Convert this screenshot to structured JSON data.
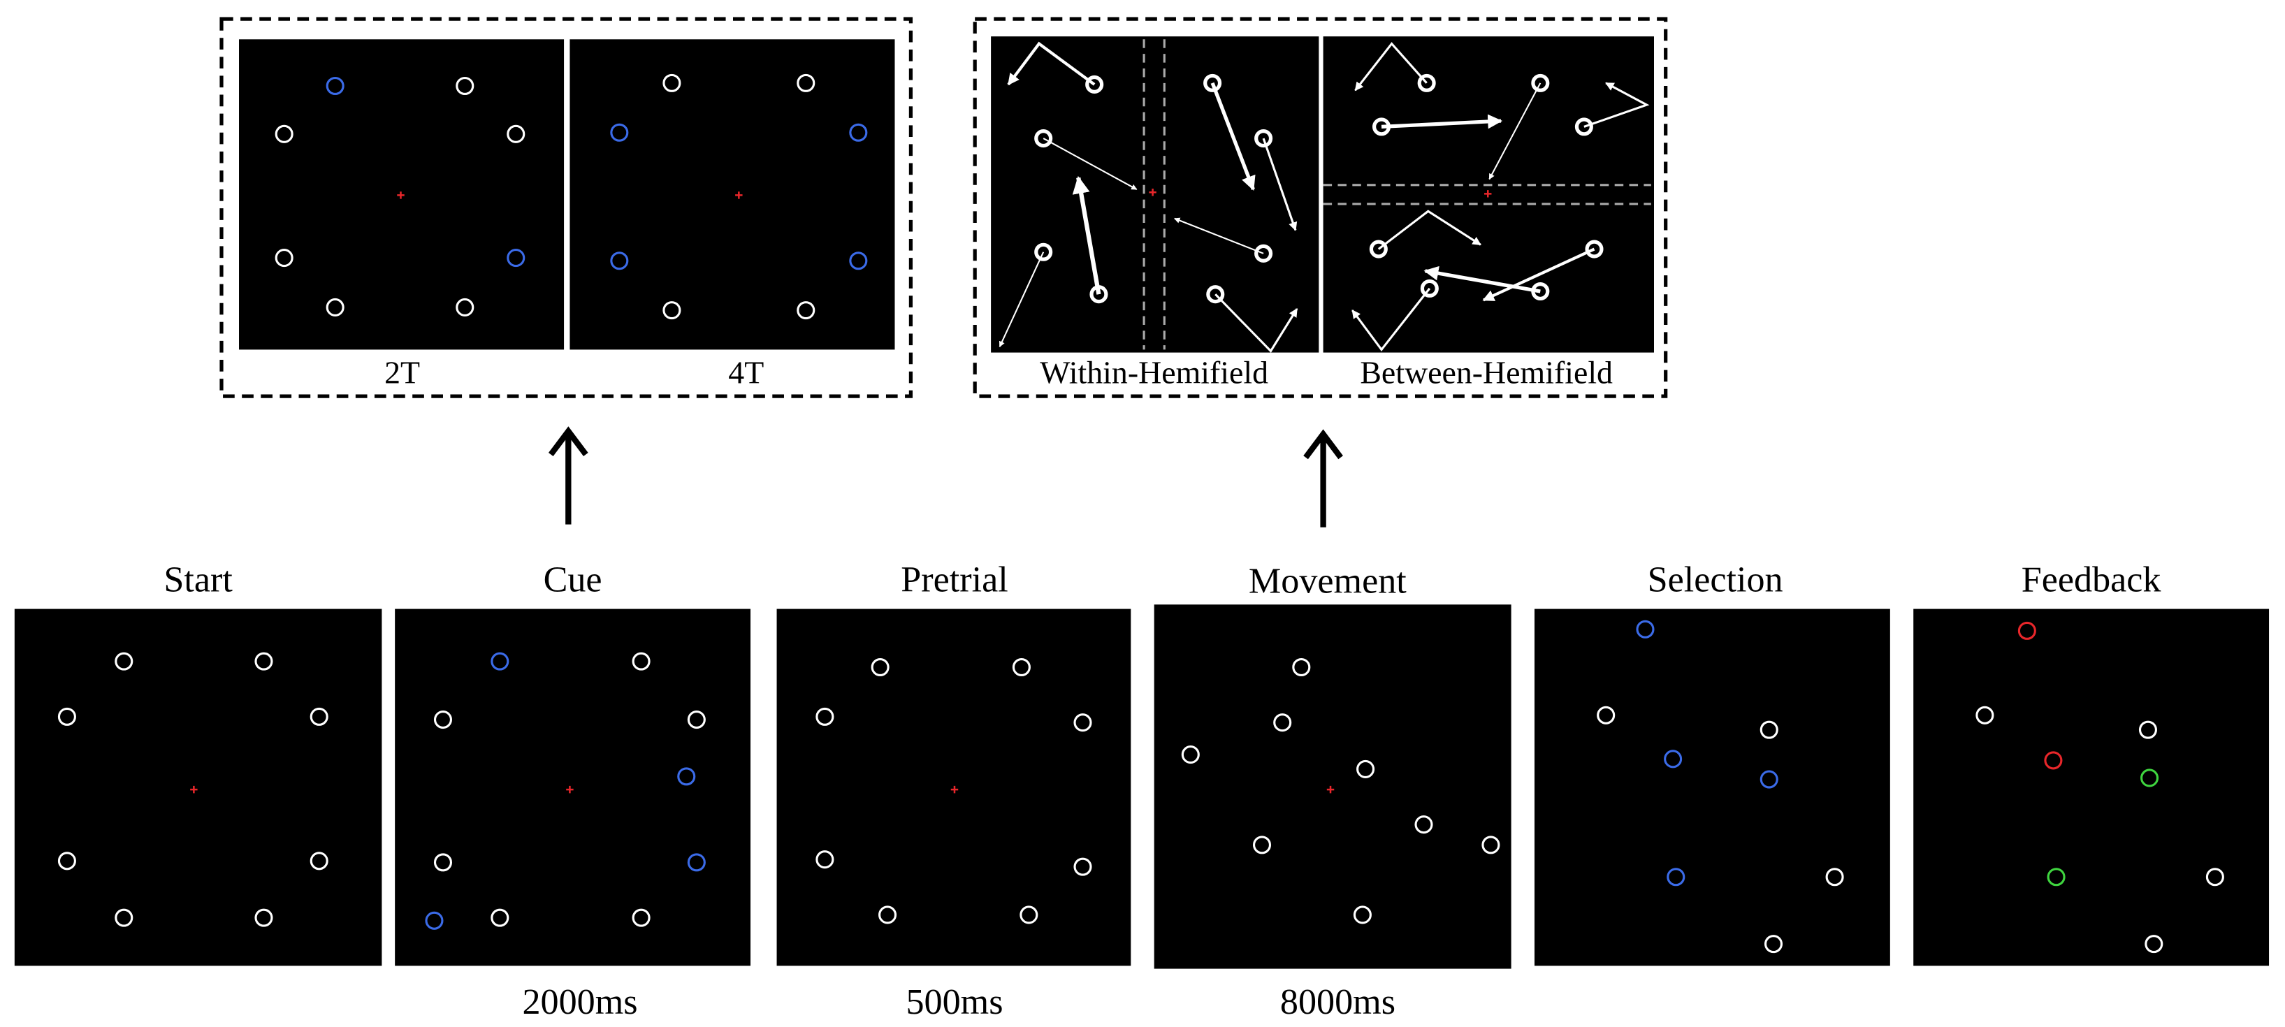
{
  "insets": {
    "cue": [
      "2T",
      "4T"
    ],
    "movement": [
      "Within-Hemifield",
      "Between-Hemifield"
    ]
  },
  "stages": [
    {
      "title": "Start"
    },
    {
      "title": "Cue",
      "duration": "2000ms"
    },
    {
      "title": "Pretrial",
      "duration": "500ms"
    },
    {
      "title": "Movement",
      "duration": "8000ms"
    },
    {
      "title": "Selection"
    },
    {
      "title": "Feedback"
    }
  ]
}
